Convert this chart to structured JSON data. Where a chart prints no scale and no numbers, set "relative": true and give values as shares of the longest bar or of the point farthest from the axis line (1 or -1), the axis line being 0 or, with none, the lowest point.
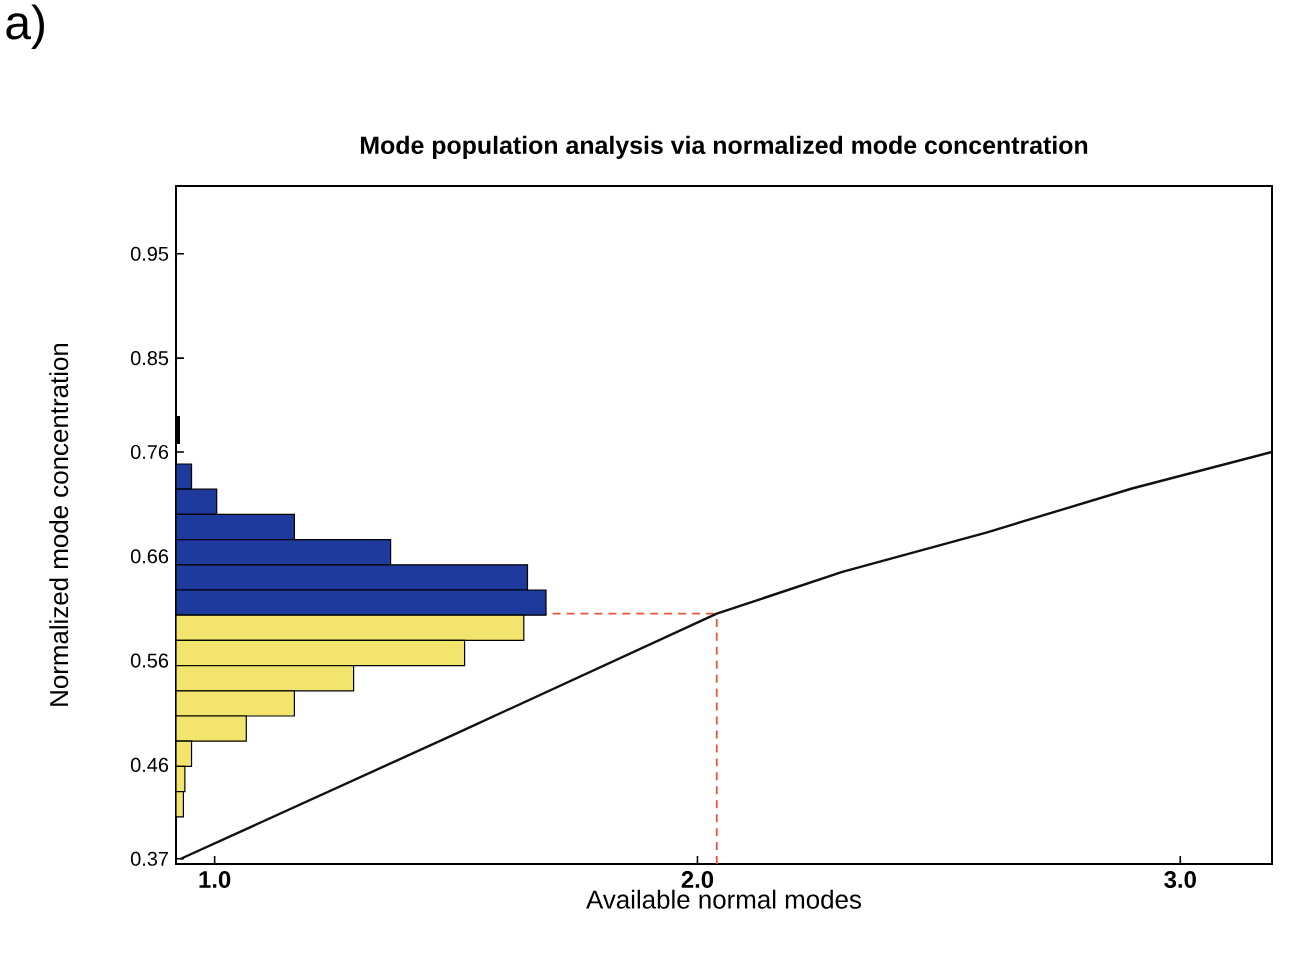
{
  "chart_data": [
    {
      "type": "bar",
      "orientation": "horizontal",
      "relative": true,
      "categories": [
        null,
        null,
        null,
        null,
        null,
        null,
        null,
        null,
        null,
        null,
        null,
        null,
        null,
        null
      ],
      "values": [
        0.042,
        0.11,
        0.32,
        0.58,
        0.95,
        1,
        0.94,
        0.78,
        0.48,
        0.32,
        0.19,
        0.042,
        0.024,
        0.02
      ],
      "colors": [
        "#1d3a9c",
        "#1d3a9c",
        "#1d3a9c",
        "#1d3a9c",
        "#1d3a9c",
        "#1d3a9c",
        "#f3e46e",
        "#f3e46e",
        "#f3e46e",
        "#f3e46e",
        "#f3e46e",
        "#f3e46e",
        "#f3e46e",
        "#f3e46e"
      ]
    },
    {
      "type": "line",
      "title": "Mode population analysis via normalized mode concentration",
      "xlabel": "Available normal modes",
      "ylabel": "Normalized mode concentration",
      "annotations": [
        "a)"
      ],
      "xlim": [
        0.92,
        3.19
      ],
      "ylim": [
        0.365,
        1.015
      ],
      "xticks": [
        {
          "value": 1,
          "label": "1.0"
        },
        {
          "value": 2,
          "label": "2.0"
        },
        {
          "value": 3,
          "label": "3.0"
        }
      ],
      "yticks": [
        0.37,
        0.46,
        0.56,
        0.66,
        0.76,
        0.85,
        0.95
      ],
      "color": "#111111",
      "x": [
        0.93,
        1.5,
        2.04,
        2.3,
        2.6,
        2.9,
        3.19
      ],
      "values": [
        0.37,
        0.49,
        0.605,
        0.645,
        0.683,
        0.725,
        0.76
      ],
      "ref_lines": [
        {
          "axis": "x",
          "value": 2.04,
          "color": "#e8543c",
          "line_style": "dashed"
        },
        {
          "axis": "y",
          "value": 0.605,
          "color": "#e8543c",
          "line_style": "dashed"
        }
      ]
    }
  ]
}
